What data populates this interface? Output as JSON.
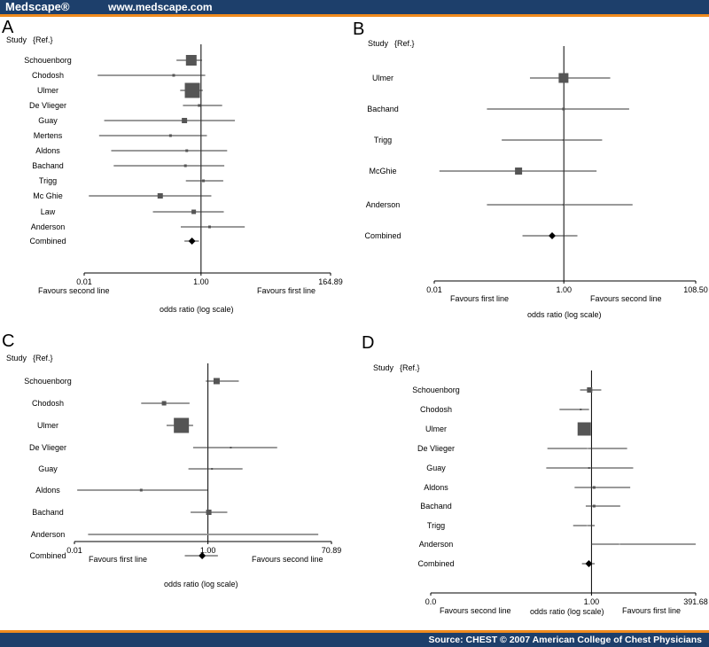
{
  "header": {
    "logo": "Medscape®",
    "site_url": "www.medscape.com"
  },
  "footer": {
    "source": "Source: CHEST © 2007 American College of Chest Physicians"
  },
  "colors": {
    "header_bg": "#1d3f6b",
    "accent": "#f08a1d",
    "marker": "#555555",
    "line": "#333333"
  },
  "chart_data": [
    {
      "panel": "A",
      "type": "forest",
      "scale": "log",
      "header": {
        "study": "Study",
        "ref": "{Ref.}"
      },
      "xlim": [
        0.01,
        164.89
      ],
      "reference": 1.0,
      "tick_labels": [
        "0.01",
        "1.00",
        "164.89"
      ],
      "favours_left": "Favours second line",
      "favours_right": "Favours first line",
      "xlabel": "odds ratio (log scale)",
      "studies": [
        {
          "name": "Schouenborg",
          "or": 0.68,
          "ci": [
            0.38,
            1.04
          ],
          "size": 12
        },
        {
          "name": "Chodosh",
          "or": 0.34,
          "ci": [
            0.017,
            1.18
          ],
          "size": 3
        },
        {
          "name": "Ulmer",
          "or": 0.71,
          "ci": [
            0.44,
            1.07
          ],
          "size": 17
        },
        {
          "name": "De Vlieger",
          "or": 0.93,
          "ci": [
            0.49,
            2.3
          ],
          "size": 3
        },
        {
          "name": "Guay",
          "or": 0.52,
          "ci": [
            0.022,
            3.8
          ],
          "size": 6
        },
        {
          "name": "Mertens",
          "or": 0.3,
          "ci": [
            0.018,
            1.26
          ],
          "size": 3
        },
        {
          "name": "Aldons",
          "or": 0.57,
          "ci": [
            0.029,
            2.8
          ],
          "size": 3
        },
        {
          "name": "Bachand",
          "or": 0.54,
          "ci": [
            0.032,
            2.5
          ],
          "size": 3
        },
        {
          "name": "Trigg",
          "or": 1.1,
          "ci": [
            0.55,
            2.4
          ],
          "size": 3
        },
        {
          "name": "Mc Ghie",
          "or": 0.2,
          "ci": [
            0.012,
            1.5
          ],
          "size": 6
        },
        {
          "name": "Law",
          "or": 0.75,
          "ci": [
            0.15,
            2.45
          ],
          "size": 5
        },
        {
          "name": "Anderson",
          "or": 1.4,
          "ci": [
            0.45,
            5.6
          ],
          "size": 3
        }
      ],
      "combined": {
        "name": "Combined",
        "or": 0.7,
        "ci": [
          0.52,
          0.92
        ]
      }
    },
    {
      "panel": "B",
      "type": "forest",
      "scale": "log",
      "header": {
        "study": "Study",
        "ref": "{Ref.}"
      },
      "xlim": [
        0.01,
        108.5
      ],
      "reference": 1.0,
      "tick_labels": [
        "0.01",
        "1.00",
        "108.50"
      ],
      "favours_left": "Favours first line",
      "favours_right": "Favours second line",
      "xlabel": "odds ratio (log scale)",
      "studies": [
        {
          "name": "Ulmer",
          "or": 0.99,
          "ci": [
            0.3,
            5.2
          ],
          "size": 11
        },
        {
          "name": "Bachand",
          "or": 0.99,
          "ci": [
            0.065,
            10.2
          ],
          "size": 3
        },
        {
          "name": "Trigg",
          "or": 0.99,
          "ci": [
            0.11,
            3.9
          ],
          "size": 2
        },
        {
          "name": "McGhie",
          "or": 0.2,
          "ci": [
            0.012,
            3.2
          ],
          "size": 8
        },
        {
          "name": "Anderson",
          "or": 0.99,
          "ci": [
            0.065,
            11.5
          ],
          "size": 2
        }
      ],
      "combined": {
        "name": "Combined",
        "or": 0.66,
        "ci": [
          0.23,
          1.62
        ]
      }
    },
    {
      "panel": "C",
      "type": "forest",
      "scale": "log",
      "header": {
        "study": "Study",
        "ref": "{Ref.}"
      },
      "xlim": [
        0.01,
        70.89
      ],
      "reference": 1.0,
      "tick_labels": [
        "0.01",
        "1.00",
        "70.89"
      ],
      "favours_left": "Favours first line",
      "favours_right": "Favours second line",
      "xlabel": "odds ratio (log scale)",
      "studies": [
        {
          "name": "Schouenborg",
          "or": 1.35,
          "ci": [
            0.93,
            2.9
          ],
          "size": 7
        },
        {
          "name": "Chodosh",
          "or": 0.22,
          "ci": [
            0.1,
            0.53
          ],
          "size": 5
        },
        {
          "name": "Ulmer",
          "or": 0.4,
          "ci": [
            0.24,
            0.6
          ],
          "size": 17
        },
        {
          "name": "De Vlieger",
          "or": 2.2,
          "ci": [
            0.6,
            10.9
          ],
          "size": 2
        },
        {
          "name": "Guay",
          "or": 1.15,
          "ci": [
            0.51,
            3.3
          ],
          "size": 2
        },
        {
          "name": "Aldons",
          "or": 0.1,
          "ci": [
            0.011,
            1.0
          ],
          "size": 3
        },
        {
          "name": "Bachand",
          "or": 1.03,
          "ci": [
            0.55,
            1.95
          ],
          "size": 6
        },
        {
          "name": "Anderson",
          "or": 1.0,
          "ci": [
            0.016,
            45.0
          ],
          "size": 0
        }
      ],
      "combined": {
        "name": "Combined",
        "or": 0.82,
        "ci": [
          0.45,
          1.41
        ]
      }
    },
    {
      "panel": "D",
      "type": "forest",
      "scale": "log",
      "header": {
        "study": "Study",
        "ref": "{Ref.}"
      },
      "xlim": [
        0.0,
        391.68
      ],
      "reference": 1.0,
      "tick_labels": [
        "0.0",
        "1.00",
        "391.68"
      ],
      "favours_left": "Favours second line",
      "favours_right": "Favours first line",
      "xlabel": "odds ratio (log scale)",
      "studies": [
        {
          "name": "Schouenborg",
          "or": 0.9,
          "ci": [
            0.52,
            1.75
          ],
          "size": 6
        },
        {
          "name": "Chodosh",
          "or": 0.54,
          "ci": [
            0.16,
            0.87
          ],
          "size": 2
        },
        {
          "name": "Ulmer",
          "or": 0.66,
          "ci": [
            0.5,
            0.86
          ],
          "size": 15
        },
        {
          "name": "De Vlieger",
          "or": 0.8,
          "ci": [
            0.08,
            7.7
          ],
          "size": 0
        },
        {
          "name": "Guay",
          "or": 0.87,
          "ci": [
            0.075,
            10.9
          ],
          "size": 2
        },
        {
          "name": "Aldons",
          "or": 1.16,
          "ci": [
            0.38,
            9.2
          ],
          "size": 3
        },
        {
          "name": "Bachand",
          "or": 1.16,
          "ci": [
            0.72,
            5.2
          ],
          "size": 3
        },
        {
          "name": "Trigg",
          "or": 0.78,
          "ci": [
            0.35,
            1.2
          ],
          "size": 0
        },
        {
          "name": "Anderson",
          "or": 5.0,
          "ci": [
            0.98,
            391.0
          ],
          "size": 0
        }
      ],
      "combined": {
        "name": "Combined",
        "or": 0.86,
        "ci": [
          0.58,
          1.2
        ]
      }
    }
  ]
}
